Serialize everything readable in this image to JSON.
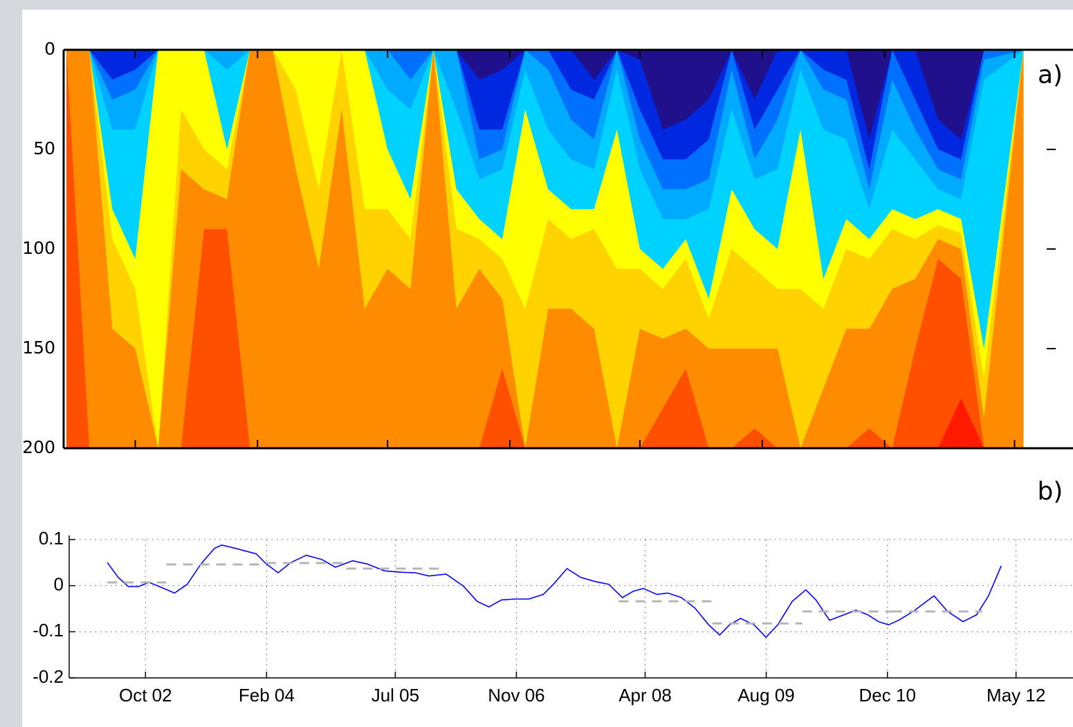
{
  "chart_data": [
    {
      "type": "contour",
      "title": "a)",
      "x": [
        2002.0,
        2002.25,
        2002.5,
        2002.75,
        2003.0,
        2003.25,
        2003.5,
        2003.75,
        2004.0,
        2004.25,
        2004.5,
        2004.75,
        2005.0,
        2005.25,
        2005.5,
        2005.75,
        2006.0,
        2006.25,
        2006.5,
        2006.75,
        2007.0,
        2007.25,
        2007.5,
        2007.75,
        2008.0,
        2008.25,
        2008.5,
        2008.75,
        2009.0,
        2009.25,
        2009.5,
        2009.75,
        2010.0,
        2010.25,
        2010.5,
        2010.75,
        2011.0,
        2011.25,
        2011.5,
        2011.75,
        2012.0,
        2012.43
      ],
      "base_color": "#ff1a00",
      "bands": [
        {
          "color": "#20108c",
          "depths": [
            0,
            0,
            0,
            0,
            0,
            0,
            0,
            0,
            0,
            0,
            0,
            0,
            0,
            0,
            0,
            0,
            0,
            0,
            15,
            10,
            0,
            0,
            0,
            15,
            0,
            5,
            40,
            35,
            25,
            0,
            25,
            0,
            0,
            0,
            0,
            45,
            0,
            0,
            35,
            45,
            0,
            0
          ]
        },
        {
          "color": "#0028e0",
          "depths": [
            0,
            0,
            15,
            10,
            0,
            0,
            0,
            0,
            0,
            0,
            0,
            0,
            0,
            0,
            0,
            0,
            0,
            0,
            40,
            40,
            0,
            0,
            20,
            25,
            0,
            30,
            55,
            55,
            45,
            0,
            40,
            20,
            0,
            10,
            15,
            60,
            0,
            25,
            50,
            55,
            0,
            0
          ]
        },
        {
          "color": "#0070ff",
          "depths": [
            0,
            0,
            25,
            20,
            0,
            0,
            0,
            0,
            0,
            0,
            0,
            0,
            0,
            0,
            0,
            15,
            0,
            0,
            55,
            50,
            0,
            10,
            35,
            45,
            0,
            45,
            70,
            70,
            65,
            10,
            55,
            35,
            0,
            20,
            25,
            70,
            15,
            40,
            60,
            65,
            5,
            0
          ]
        },
        {
          "color": "#00aaff",
          "depths": [
            0,
            0,
            40,
            40,
            0,
            0,
            0,
            10,
            0,
            0,
            0,
            0,
            0,
            0,
            20,
            30,
            0,
            30,
            65,
            60,
            10,
            40,
            55,
            60,
            10,
            60,
            85,
            85,
            80,
            30,
            65,
            60,
            10,
            40,
            45,
            80,
            40,
            55,
            70,
            75,
            15,
            0
          ]
        },
        {
          "color": "#00d2ff",
          "depths": [
            0,
            0,
            80,
            105,
            0,
            0,
            0,
            50,
            0,
            0,
            0,
            0,
            0,
            0,
            50,
            75,
            0,
            70,
            85,
            95,
            30,
            70,
            80,
            80,
            40,
            100,
            110,
            95,
            125,
            70,
            90,
            100,
            40,
            115,
            85,
            95,
            80,
            85,
            80,
            85,
            150,
            0
          ]
        },
        {
          "color": "#ffff00",
          "depths": [
            0,
            0,
            95,
            120,
            200,
            30,
            50,
            60,
            0,
            0,
            20,
            70,
            0,
            80,
            80,
            95,
            0,
            90,
            95,
            105,
            130,
            85,
            95,
            90,
            110,
            110,
            120,
            105,
            135,
            100,
            110,
            120,
            120,
            130,
            100,
            105,
            90,
            95,
            88,
            92,
            165,
            0
          ]
        },
        {
          "color": "#ffd200",
          "depths": [
            0,
            0,
            140,
            150,
            200,
            60,
            70,
            75,
            0,
            0,
            60,
            110,
            30,
            130,
            110,
            120,
            0,
            130,
            110,
            125,
            200,
            130,
            130,
            140,
            200,
            140,
            145,
            140,
            150,
            150,
            150,
            150,
            200,
            170,
            140,
            140,
            120,
            115,
            95,
            100,
            185,
            0
          ]
        },
        {
          "color": "#ff8c00",
          "depths": [
            0,
            200,
            200,
            200,
            200,
            200,
            90,
            90,
            200,
            200,
            200,
            200,
            200,
            200,
            200,
            200,
            200,
            200,
            200,
            160,
            200,
            200,
            200,
            200,
            200,
            200,
            180,
            160,
            200,
            200,
            190,
            200,
            200,
            200,
            200,
            190,
            200,
            150,
            105,
            115,
            200,
            200
          ]
        },
        {
          "color": "#ff5000",
          "depths": [
            200,
            200,
            200,
            200,
            200,
            200,
            200,
            200,
            200,
            200,
            200,
            200,
            200,
            200,
            200,
            200,
            200,
            200,
            200,
            200,
            200,
            200,
            200,
            200,
            200,
            200,
            200,
            200,
            200,
            200,
            200,
            200,
            200,
            200,
            200,
            200,
            200,
            200,
            200,
            175,
            200,
            200
          ]
        }
      ],
      "xlim": [
        2001.97,
        2012.97
      ],
      "xticks": [
        2002.75,
        2004.083,
        2005.5,
        2006.833,
        2008.25,
        2009.583,
        2010.917,
        2012.333
      ],
      "ylim": [
        0,
        200
      ],
      "yinvert": true,
      "yticks": [
        0,
        50,
        100,
        150,
        200
      ]
    },
    {
      "type": "line",
      "title": "b)",
      "series": [
        {
          "color": "#0000ff",
          "style": "solid",
          "x": [
            2002.33,
            2002.45,
            2002.56,
            2002.67,
            2002.79,
            2002.94,
            2003.07,
            2003.21,
            2003.36,
            2003.51,
            2003.59,
            2003.74,
            2003.97,
            2004.08,
            2004.21,
            2004.35,
            2004.52,
            2004.69,
            2004.84,
            2005.03,
            2005.19,
            2005.38,
            2005.57,
            2005.72,
            2005.87,
            2006.06,
            2006.25,
            2006.4,
            2006.53,
            2006.67,
            2006.82,
            2006.97,
            2007.13,
            2007.24,
            2007.39,
            2007.54,
            2007.7,
            2007.85,
            2008.0,
            2008.12,
            2008.23,
            2008.38,
            2008.5,
            2008.65,
            2008.8,
            2008.95,
            2009.07,
            2009.18,
            2009.3,
            2009.45,
            2009.58,
            2009.71,
            2009.87,
            2010.02,
            2010.13,
            2010.28,
            2010.44,
            2010.57,
            2010.7,
            2010.82,
            2010.93,
            2011.04,
            2011.2,
            2011.43,
            2011.58,
            2011.75,
            2011.9,
            2012.03,
            2012.17
          ],
          "values": [
            0.05,
            0.018,
            -0.002,
            -0.002,
            0.007,
            -0.005,
            -0.016,
            0.003,
            0.047,
            0.081,
            0.088,
            0.081,
            0.069,
            0.047,
            0.028,
            0.05,
            0.066,
            0.057,
            0.04,
            0.054,
            0.047,
            0.032,
            0.029,
            0.028,
            0.021,
            0.025,
            -0.001,
            -0.034,
            -0.046,
            -0.031,
            -0.029,
            -0.029,
            -0.019,
            0.003,
            0.037,
            0.018,
            0.009,
            0.003,
            -0.026,
            -0.012,
            -0.006,
            -0.019,
            -0.016,
            -0.026,
            -0.049,
            -0.085,
            -0.107,
            -0.085,
            -0.071,
            -0.085,
            -0.112,
            -0.085,
            -0.034,
            -0.009,
            -0.031,
            -0.075,
            -0.063,
            -0.053,
            -0.063,
            -0.078,
            -0.085,
            -0.075,
            -0.056,
            -0.022,
            -0.056,
            -0.078,
            -0.063,
            -0.022,
            0.043
          ]
        },
        {
          "color": "#b4b4b4",
          "style": "dashed",
          "x": [
            2002.33,
            2002.98,
            2002.98,
            2002.98,
            2004.08,
            2004.08,
            2004.08,
            2004.96,
            2004.96,
            2004.96,
            2005.98,
            2005.98,
            2007.96,
            2008.99,
            2008.99,
            2008.99,
            2009.98,
            2009.98,
            2009.98,
            2010.97,
            2010.97,
            2010.97,
            2011.96
          ],
          "values": [
            0.007,
            0.007,
            null,
            0.046,
            0.046,
            null,
            0.049,
            0.049,
            null,
            0.037,
            0.037,
            null,
            -0.034,
            -0.034,
            null,
            -0.082,
            -0.082,
            null,
            -0.056,
            -0.056,
            null,
            -0.056,
            -0.056
          ]
        }
      ],
      "xlim": [
        2001.91,
        2012.96
      ],
      "xticks": [
        {
          "value": 2002.75,
          "label": "Oct 02"
        },
        {
          "value": 2004.083,
          "label": "Feb 04"
        },
        {
          "value": 2005.5,
          "label": "Jul 05"
        },
        {
          "value": 2006.833,
          "label": "Nov 06"
        },
        {
          "value": 2008.25,
          "label": "Apr 08"
        },
        {
          "value": 2009.583,
          "label": "Aug 09"
        },
        {
          "value": 2010.917,
          "label": "Dec 10"
        },
        {
          "value": 2012.333,
          "label": "May 12"
        }
      ],
      "ylim": [
        -0.2,
        0.1
      ],
      "yticks": [
        -0.2,
        -0.1,
        0,
        0.1
      ],
      "grid": true
    }
  ]
}
